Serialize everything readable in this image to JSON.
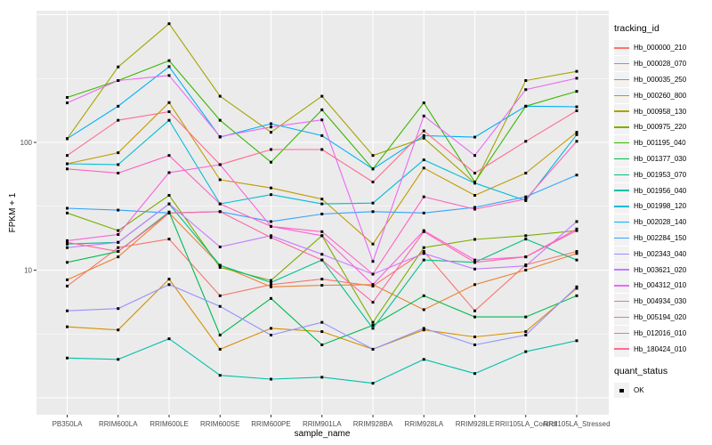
{
  "figure": {
    "background": "#ffffff",
    "panel_background": "#ebebeb",
    "gridline_color": "#ffffff",
    "axis_text_color": "#4d4d4d",
    "point_color": "#000000",
    "legend_key_background": "#f2f2f2"
  },
  "chart_data": {
    "type": "line",
    "title": "",
    "xlabel": "sample_name",
    "ylabel": "FPKM + 1",
    "y_scale": "log10",
    "ylim": [
      0.75,
      1050
    ],
    "grid": true,
    "legend_position": "right",
    "y_ticks": [
      {
        "label": "100",
        "value": 100
      },
      {
        "label": "10",
        "value": 10
      }
    ],
    "y_major_gridlines": [
      1,
      10,
      100,
      1000
    ],
    "y_minor_gridlines": [
      3.162,
      31.62,
      316.2
    ],
    "categories": [
      "PB350LA",
      "RRIM600LA",
      "RRIM600LE",
      "RRIM600SE",
      "RRIM600PE",
      "RRIM901LA",
      "RRIM928BA",
      "RRIM928LA",
      "RRIM928LE",
      "RRII105LA_Control",
      "RRII105LA_Stressed"
    ],
    "legend": {
      "color_title": "tracking_id",
      "shape_title": "quant_status",
      "shape_items": [
        "OK"
      ]
    },
    "series": [
      {
        "name": "Hb_000000_210",
        "color": "#F8766D",
        "values": [
          7.5,
          15,
          17.5,
          6.3,
          7.7,
          8.5,
          7.5,
          14,
          4.8,
          11,
          14
        ]
      },
      {
        "name": "Hb_000028_070",
        "color": "#EA8331",
        "values": [
          8.4,
          12.7,
          28,
          10.9,
          7.4,
          7.6,
          7.7,
          4.9,
          7.7,
          10,
          13.5
        ]
      },
      {
        "name": "Hb_000035_250",
        "color": "#D89000",
        "values": [
          3.6,
          3.4,
          8.5,
          2.4,
          3.5,
          3.3,
          2.4,
          3.4,
          3.0,
          3.3,
          7.2
        ]
      },
      {
        "name": "Hb_000260_800",
        "color": "#C09B00",
        "values": [
          68,
          83,
          205,
          51,
          44,
          36,
          16,
          63,
          38.5,
          57.5,
          120
        ]
      },
      {
        "name": "Hb_000958_130",
        "color": "#A3A500",
        "values": [
          107,
          390,
          850,
          230,
          120,
          230,
          79,
          108,
          48,
          305,
          360
        ]
      },
      {
        "name": "Hb_000975_220",
        "color": "#7CAE00",
        "values": [
          28,
          20.4,
          38.5,
          10.5,
          8.3,
          18.6,
          3.9,
          15,
          17.4,
          18.6,
          20.4
        ]
      },
      {
        "name": "Hb_001195_040",
        "color": "#39B600",
        "values": [
          225,
          305,
          437,
          149,
          70,
          180,
          62,
          204,
          49,
          192,
          251
        ]
      },
      {
        "name": "Hb_001377_030",
        "color": "#00BB4E",
        "values": [
          11.5,
          14,
          28.5,
          3.1,
          6.0,
          2.6,
          3.7,
          6.3,
          4.3,
          4.3,
          6.3
        ]
      },
      {
        "name": "Hb_001953_070",
        "color": "#00C087",
        "values": [
          16,
          16.5,
          33,
          10.9,
          8.0,
          12,
          3.5,
          12,
          11.5,
          17.5,
          12
        ]
      },
      {
        "name": "Hb_001956_040",
        "color": "#00C0A9",
        "values": [
          2.05,
          2.0,
          2.9,
          1.5,
          1.4,
          1.45,
          1.3,
          2.0,
          1.55,
          2.3,
          2.8
        ]
      },
      {
        "name": "Hb_001998_120",
        "color": "#00BCD8",
        "values": [
          68,
          67,
          149,
          33,
          39,
          33,
          33.5,
          73,
          48,
          35,
          115
        ]
      },
      {
        "name": "Hb_002028_140",
        "color": "#00B0F6",
        "values": [
          107,
          192,
          392,
          110,
          140,
          113,
          62,
          113,
          110,
          192,
          190
        ]
      },
      {
        "name": "Hb_002284_150",
        "color": "#35A2FF",
        "values": [
          30.5,
          29.5,
          28,
          28.7,
          24,
          27.5,
          28.7,
          28,
          31,
          37.5,
          55.5
        ]
      },
      {
        "name": "Hb_002343_040",
        "color": "#9590FF",
        "values": [
          4.8,
          5.0,
          7.7,
          5.2,
          3.1,
          3.9,
          2.4,
          3.5,
          2.6,
          3.1,
          7.4
        ]
      },
      {
        "name": "Hb_003621_020",
        "color": "#C77CFF",
        "values": [
          15,
          16.5,
          33,
          15.2,
          18.6,
          13.3,
          9.3,
          13.5,
          10.2,
          10.8,
          24
        ]
      },
      {
        "name": "Hb_004312_010",
        "color": "#E76BF3",
        "values": [
          204,
          305,
          334,
          111,
          132,
          150,
          11.7,
          161,
          79,
          259,
          318
        ]
      },
      {
        "name": "Hb_004934_030",
        "color": "#FA62DB",
        "values": [
          17,
          19,
          58,
          67,
          22,
          18.6,
          7.7,
          20.4,
          12,
          12.7,
          21
        ]
      },
      {
        "name": "Hb_005194_020",
        "color": "#FF61C3",
        "values": [
          62,
          57.5,
          79,
          33,
          22,
          20,
          9.3,
          37.5,
          30,
          36,
          102
        ]
      },
      {
        "name": "Hb_012016_010",
        "color": "#FF67A4",
        "values": [
          16.5,
          14,
          28,
          28.7,
          18,
          12,
          5.6,
          20,
          11.5,
          12.7,
          20.4
        ]
      },
      {
        "name": "Hb_180424_010",
        "color": "#FF6C90",
        "values": [
          79,
          149,
          174,
          67,
          88,
          88,
          49,
          123,
          57.5,
          102,
          177
        ]
      }
    ]
  }
}
